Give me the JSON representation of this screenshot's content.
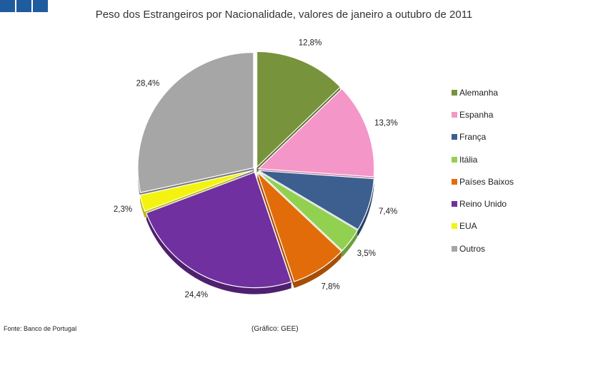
{
  "logo": {
    "blocks": 3,
    "color": "#1f5c9e"
  },
  "title": "Peso dos Estrangeiros por Nacionalidade, valores de janeiro a outubro de 2011",
  "footer": {
    "source": "Fonte: Banco de Portugal",
    "credit": "(Gráfico: GEE)"
  },
  "chart_data": {
    "type": "pie",
    "title": "Peso dos Estrangeiros por Nacionalidade, valores de janeiro a outubro de 2011",
    "legend_position": "right",
    "exploded": true,
    "slices": [
      {
        "name": "Alemanha",
        "value": 12.8,
        "label": "12,8%",
        "color": "#77933c",
        "side": "#5a702d"
      },
      {
        "name": "Espanha",
        "value": 13.3,
        "label": "13,3%",
        "color": "#f596c8",
        "side": "#c77aa3"
      },
      {
        "name": "França",
        "value": 7.4,
        "label": "7,4%",
        "color": "#3c5f8f",
        "side": "#2a4366"
      },
      {
        "name": "Itália",
        "value": 3.5,
        "label": "3,5%",
        "color": "#92d050",
        "side": "#6e9e3c"
      },
      {
        "name": "Países Baixos",
        "value": 7.8,
        "label": "7,8%",
        "color": "#e36c0a",
        "side": "#a64f07"
      },
      {
        "name": "Reino Unido",
        "value": 24.4,
        "label": "24,4%",
        "color": "#7030a0",
        "side": "#4e216f"
      },
      {
        "name": "EUA",
        "value": 2.3,
        "label": "2,3%",
        "color": "#f3f30f",
        "side": "#b9b90b"
      },
      {
        "name": "Outros",
        "value": 28.4,
        "label": "28,4%",
        "color": "#a6a6a6",
        "side": "#7c7c7c"
      }
    ]
  }
}
